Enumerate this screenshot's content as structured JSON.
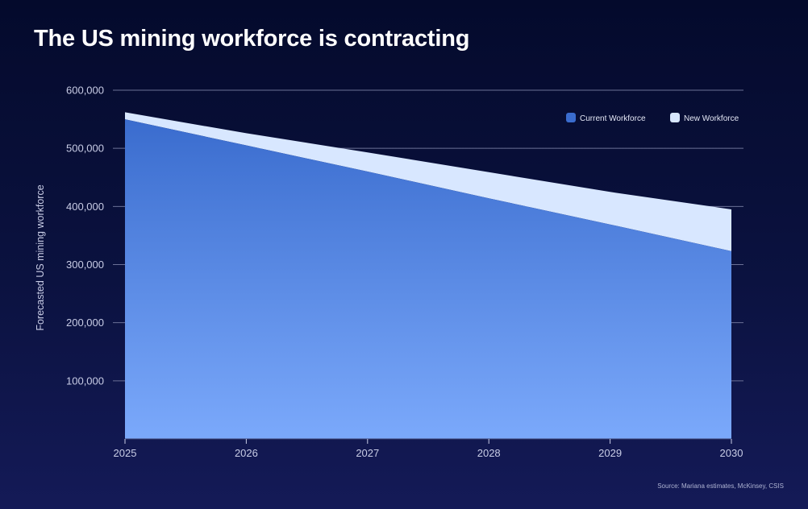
{
  "header": {
    "title": "The US mining workforce is contracting"
  },
  "footer": {
    "source": "Source: Mariana estimates, McKinsey, CSIS"
  },
  "colors": {
    "current_top": "#3a6cce",
    "current_bottom": "#7ba9fb",
    "new_workforce": "#d8e7ff",
    "gridline": "#6b7196",
    "tick_text": "#c9cde6"
  },
  "chart_data": {
    "type": "area",
    "stacked": true,
    "title": "The US mining workforce is contracting",
    "xlabel": "",
    "ylabel": "Forecasted US mining workforce",
    "x": [
      "2025",
      "2026",
      "2027",
      "2028",
      "2029",
      "2030"
    ],
    "ylim": [
      0,
      600000
    ],
    "yticks": [
      100000,
      200000,
      300000,
      400000,
      500000,
      600000
    ],
    "ytick_labels": [
      "100,000",
      "200,000",
      "300,000",
      "400,000",
      "500,000",
      "600,000"
    ],
    "series": [
      {
        "name": "Current Workforce",
        "values": [
          550000,
          505000,
          460000,
          414000,
          369000,
          323000
        ]
      },
      {
        "name": "New Workforce",
        "values": [
          12000,
          21000,
          33000,
          45000,
          56000,
          72000
        ]
      }
    ],
    "legend_position": "top-right",
    "grid": true
  }
}
